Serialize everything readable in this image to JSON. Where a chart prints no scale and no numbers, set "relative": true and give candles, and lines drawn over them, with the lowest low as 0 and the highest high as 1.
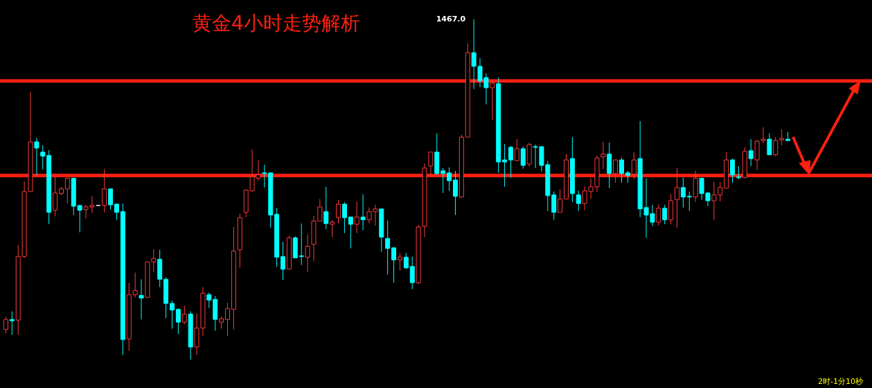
{
  "chart_data": {
    "type": "candlestick",
    "title": "黄金4小时走势解析",
    "relative": true,
    "tick_labels": false,
    "categories": [
      null,
      null,
      null,
      null,
      null,
      null,
      null,
      null,
      null,
      null,
      null,
      null,
      null,
      null,
      null,
      null,
      null,
      null,
      null,
      null,
      null,
      null,
      null,
      null,
      null,
      null,
      null,
      null,
      null,
      null,
      null,
      null,
      null,
      null,
      null,
      null,
      null,
      null,
      null,
      null,
      null,
      null,
      null,
      null,
      null,
      null,
      null,
      null,
      null,
      null,
      null,
      null,
      null,
      null,
      null,
      null,
      null,
      null,
      null,
      null,
      null,
      null,
      null,
      null,
      null,
      null,
      null,
      null,
      null,
      null,
      null,
      null,
      null,
      null,
      null,
      null,
      null,
      null,
      null,
      null,
      null,
      null,
      null,
      null,
      null,
      null,
      null,
      null,
      null,
      null,
      null,
      null,
      null,
      null,
      null,
      null,
      null,
      null,
      null,
      null,
      null,
      null,
      null,
      null,
      null,
      null,
      null,
      null,
      null,
      null,
      null,
      null,
      null,
      null,
      null,
      null,
      null,
      null,
      null,
      null,
      null,
      null,
      null,
      null,
      null,
      null,
      null,
      null
    ],
    "ohlc": [
      [
        0.089,
        0.126,
        0.077,
        0.118
      ],
      [
        0.118,
        0.142,
        0.073,
        0.114
      ],
      [
        0.116,
        0.337,
        0.073,
        0.303
      ],
      [
        0.303,
        0.524,
        0.299,
        0.494
      ],
      [
        0.494,
        0.787,
        0.494,
        0.64
      ],
      [
        0.64,
        0.652,
        0.543,
        0.622
      ],
      [
        0.61,
        0.63,
        0.559,
        0.598
      ],
      [
        0.6,
        0.616,
        0.398,
        0.433
      ],
      [
        0.439,
        0.539,
        0.421,
        0.49
      ],
      [
        0.488,
        0.508,
        0.484,
        0.502
      ],
      [
        0.502,
        0.535,
        0.459,
        0.533
      ],
      [
        0.533,
        0.533,
        0.425,
        0.451
      ],
      [
        0.453,
        0.455,
        0.374,
        0.439
      ],
      [
        0.441,
        0.455,
        0.415,
        0.449
      ],
      [
        0.449,
        0.48,
        0.431,
        0.453
      ],
      [
        0.453,
        0.453,
        0.453,
        0.453
      ],
      [
        0.453,
        0.561,
        0.433,
        0.502
      ],
      [
        0.502,
        0.502,
        0.441,
        0.455
      ],
      [
        0.457,
        0.459,
        0.411,
        0.433
      ],
      [
        0.435,
        0.459,
        0.014,
        0.059
      ],
      [
        0.061,
        0.226,
        0.026,
        0.191
      ],
      [
        0.191,
        0.256,
        0.183,
        0.203
      ],
      [
        0.189,
        0.236,
        0.118,
        0.181
      ],
      [
        0.183,
        0.287,
        0.183,
        0.287
      ],
      [
        0.287,
        0.325,
        0.258,
        0.297
      ],
      [
        0.295,
        0.323,
        0.213,
        0.236
      ],
      [
        0.236,
        0.242,
        0.122,
        0.165
      ],
      [
        0.165,
        0.173,
        0.091,
        0.146
      ],
      [
        0.148,
        0.15,
        0.075,
        0.11
      ],
      [
        0.11,
        0.159,
        0.104,
        0.134
      ],
      [
        0.134,
        0.142,
        0,
        0.037
      ],
      [
        0.037,
        0.136,
        0.014,
        0.093
      ],
      [
        0.093,
        0.213,
        0.069,
        0.195
      ],
      [
        0.191,
        0.197,
        0.152,
        0.175
      ],
      [
        0.177,
        0.187,
        0.085,
        0.118
      ],
      [
        0.11,
        0.128,
        0.091,
        0.12
      ],
      [
        0.118,
        0.167,
        0.069,
        0.15
      ],
      [
        0.148,
        0.39,
        0.089,
        0.319
      ],
      [
        0.323,
        0.429,
        0.27,
        0.417
      ],
      [
        0.433,
        0.5,
        0.419,
        0.498
      ],
      [
        0.496,
        0.618,
        0.494,
        0.537
      ],
      [
        0.533,
        0.587,
        0.526,
        0.543
      ],
      [
        0.549,
        0.573,
        0.506,
        0.547
      ],
      [
        0.549,
        0.549,
        0.388,
        0.425
      ],
      [
        0.427,
        0.445,
        0.272,
        0.301
      ],
      [
        0.303,
        0.346,
        0.234,
        0.266
      ],
      [
        0.266,
        0.364,
        0.266,
        0.358
      ],
      [
        0.358,
        0.362,
        0.299,
        0.299
      ],
      [
        0.305,
        0.4,
        0.278,
        0.303
      ],
      [
        0.301,
        0.368,
        0.258,
        0.333
      ],
      [
        0.339,
        0.423,
        0.289,
        0.407
      ],
      [
        0.407,
        0.472,
        0.407,
        0.449
      ],
      [
        0.435,
        0.508,
        0.384,
        0.4
      ],
      [
        0.398,
        0.411,
        0.36,
        0.404
      ],
      [
        0.417,
        0.47,
        0.4,
        0.457
      ],
      [
        0.457,
        0.463,
        0.372,
        0.417
      ],
      [
        0.419,
        0.419,
        0.327,
        0.398
      ],
      [
        0.398,
        0.465,
        0.372,
        0.419
      ],
      [
        0.419,
        0.486,
        0.38,
        0.411
      ],
      [
        0.411,
        0.447,
        0.4,
        0.435
      ],
      [
        0.435,
        0.455,
        0.394,
        0.443
      ],
      [
        0.443,
        0.443,
        0.317,
        0.36
      ],
      [
        0.356,
        0.409,
        0.25,
        0.327
      ],
      [
        0.329,
        0.329,
        0.226,
        0.293
      ],
      [
        0.293,
        0.313,
        0.262,
        0.301
      ],
      [
        0.301,
        0.313,
        0.266,
        0.27
      ],
      [
        0.274,
        0.303,
        0.207,
        0.226
      ],
      [
        0.226,
        0.396,
        0.222,
        0.39
      ],
      [
        0.392,
        0.577,
        0.36,
        0.563
      ],
      [
        0.569,
        0.61,
        0.537,
        0.61
      ],
      [
        0.61,
        0.665,
        0.543,
        0.547
      ],
      [
        0.555,
        0.563,
        0.49,
        0.547
      ],
      [
        0.549,
        0.565,
        0.496,
        0.526
      ],
      [
        0.528,
        0.555,
        0.425,
        0.48
      ],
      [
        0.478,
        0.661,
        0.476,
        0.654
      ],
      [
        0.654,
        0.929,
        0.654,
        0.902
      ],
      [
        0.902,
        1,
        0.795,
        0.862
      ],
      [
        0.862,
        0.886,
        0.801,
        0.819
      ],
      [
        0.829,
        0.841,
        0.75,
        0.799
      ],
      [
        0.799,
        0.823,
        0.705,
        0.813
      ],
      [
        0.811,
        0.829,
        0.549,
        0.581
      ],
      [
        0.587,
        0.634,
        0.508,
        0.581
      ],
      [
        0.624,
        0.628,
        0.535,
        0.587
      ],
      [
        0.585,
        0.648,
        0.585,
        0.62
      ],
      [
        0.62,
        0.626,
        0.561,
        0.571
      ],
      [
        0.575,
        0.638,
        0.567,
        0.632
      ],
      [
        0.626,
        0.632,
        0.563,
        0.624
      ],
      [
        0.626,
        0.626,
        0.553,
        0.571
      ],
      [
        0.573,
        0.583,
        0.437,
        0.482
      ],
      [
        0.484,
        0.494,
        0.411,
        0.433
      ],
      [
        0.433,
        0.5,
        0.433,
        0.472
      ],
      [
        0.472,
        0.604,
        0.472,
        0.587
      ],
      [
        0.591,
        0.654,
        0.463,
        0.488
      ],
      [
        0.484,
        0.496,
        0.437,
        0.459
      ],
      [
        0.459,
        0.51,
        0.439,
        0.496
      ],
      [
        0.494,
        0.533,
        0.472,
        0.508
      ],
      [
        0.508,
        0.6,
        0.492,
        0.593
      ],
      [
        0.596,
        0.64,
        0.561,
        0.604
      ],
      [
        0.604,
        0.638,
        0.504,
        0.547
      ],
      [
        0.547,
        0.587,
        0.52,
        0.587
      ],
      [
        0.587,
        0.593,
        0.52,
        0.547
      ],
      [
        0.549,
        0.555,
        0.52,
        0.541
      ],
      [
        0.545,
        0.61,
        0.53,
        0.587
      ],
      [
        0.591,
        0.701,
        0.419,
        0.443
      ],
      [
        0.447,
        0.533,
        0.358,
        0.425
      ],
      [
        0.429,
        0.455,
        0.392,
        0.404
      ],
      [
        0.404,
        0.457,
        0.394,
        0.445
      ],
      [
        0.445,
        0.455,
        0.398,
        0.411
      ],
      [
        0.411,
        0.486,
        0.398,
        0.467
      ],
      [
        0.47,
        0.563,
        0.388,
        0.506
      ],
      [
        0.506,
        0.535,
        0.447,
        0.478
      ],
      [
        0.48,
        0.494,
        0.437,
        0.478
      ],
      [
        0.478,
        0.555,
        0.463,
        0.533
      ],
      [
        0.533,
        0.533,
        0.47,
        0.488
      ],
      [
        0.49,
        0.49,
        0.451,
        0.467
      ],
      [
        0.467,
        0.522,
        0.411,
        0.484
      ],
      [
        0.484,
        0.522,
        0.465,
        0.506
      ],
      [
        0.504,
        0.61,
        0.504,
        0.587
      ],
      [
        0.587,
        0.591,
        0.52,
        0.543
      ],
      [
        0.537,
        0.569,
        0.53,
        0.535
      ],
      [
        0.535,
        0.624,
        0.533,
        0.612
      ],
      [
        0.614,
        0.648,
        0.569,
        0.591
      ],
      [
        0.587,
        0.646,
        0.557,
        0.642
      ],
      [
        0.644,
        0.683,
        0.636,
        0.648
      ],
      [
        0.648,
        0.665,
        0.602,
        0.602
      ],
      [
        0.602,
        0.654,
        0.598,
        0.644
      ],
      [
        0.646,
        0.677,
        0.63,
        0.65
      ],
      [
        0.648,
        0.669,
        0.642,
        0.644
      ]
    ],
    "colors": [
      "#ff3b3b",
      "#00ffff",
      "#ff3b3b",
      "#ff3b3b",
      "#ff3b3b",
      "#00ffff",
      "#00ffff",
      "#00ffff",
      "#ff3b3b",
      "#ff3b3b",
      "#ff3b3b",
      "#00ffff",
      "#00ffff",
      "#ff3b3b",
      "#ff3b3b",
      "#ffffff",
      "#ff3b3b",
      "#00ffff",
      "#00ffff",
      "#00ffff",
      "#ff3b3b",
      "#ff3b3b",
      "#00ffff",
      "#ff3b3b",
      "#ff3b3b",
      "#00ffff",
      "#00ffff",
      "#00ffff",
      "#00ffff",
      "#ff3b3b",
      "#00ffff",
      "#ff3b3b",
      "#ff3b3b",
      "#00ffff",
      "#00ffff",
      "#ff3b3b",
      "#ff3b3b",
      "#ff3b3b",
      "#ff3b3b",
      "#ff3b3b",
      "#ff3b3b",
      "#ff3b3b",
      "#00ffff",
      "#00ffff",
      "#00ffff",
      "#00ffff",
      "#ff3b3b",
      "#00ffff",
      "#00ffff",
      "#ff3b3b",
      "#ff3b3b",
      "#ff3b3b",
      "#00ffff",
      "#ff3b3b",
      "#ff3b3b",
      "#00ffff",
      "#00ffff",
      "#ff3b3b",
      "#00ffff",
      "#ff3b3b",
      "#ff3b3b",
      "#00ffff",
      "#00ffff",
      "#00ffff",
      "#ff3b3b",
      "#00ffff",
      "#00ffff",
      "#ff3b3b",
      "#ff3b3b",
      "#ff3b3b",
      "#00ffff",
      "#00ffff",
      "#00ffff",
      "#00ffff",
      "#ff3b3b",
      "#ff3b3b",
      "#00ffff",
      "#00ffff",
      "#00ffff",
      "#ff3b3b",
      "#00ffff",
      "#00ffff",
      "#00ffff",
      "#ff3b3b",
      "#00ffff",
      "#ff3b3b",
      "#00ffff",
      "#00ffff",
      "#00ffff",
      "#00ffff",
      "#ff3b3b",
      "#ff3b3b",
      "#00ffff",
      "#00ffff",
      "#ff3b3b",
      "#ff3b3b",
      "#ff3b3b",
      "#ff3b3b",
      "#00ffff",
      "#ff3b3b",
      "#00ffff",
      "#00ffff",
      "#ff3b3b",
      "#00ffff",
      "#00ffff",
      "#00ffff",
      "#ff3b3b",
      "#00ffff",
      "#ff3b3b",
      "#ff3b3b",
      "#00ffff",
      "#00ffff",
      "#ff3b3b",
      "#00ffff",
      "#00ffff",
      "#ff3b3b",
      "#ff3b3b",
      "#ff3b3b",
      "#00ffff",
      "#00ffff",
      "#ff3b3b",
      "#00ffff",
      "#ff3b3b",
      "#ff3b3b",
      "#00ffff",
      "#ff3b3b",
      "#ff3b3b",
      "#00ffff"
    ],
    "ref_lines": [
      {
        "axis": "y",
        "value": 0.819,
        "color": "#ff2010"
      },
      {
        "axis": "y",
        "value": 0.541,
        "color": "#ff2010"
      }
    ],
    "annotations": [
      "1467.0",
      "2时-1分10秒"
    ]
  }
}
